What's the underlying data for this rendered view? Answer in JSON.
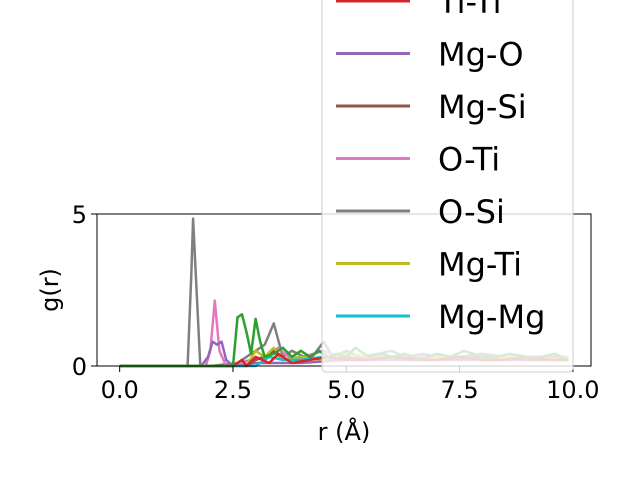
{
  "chart_data": {
    "type": "line",
    "title": "",
    "xlabel": "r (Å)",
    "ylabel": "g(r)",
    "xlim": [
      -0.5,
      10.4
    ],
    "ylim": [
      0,
      5
    ],
    "xticks": [
      0.0,
      2.5,
      5.0,
      7.5,
      10.0
    ],
    "xtick_labels": [
      "0.0",
      "2.5",
      "5.0",
      "7.5",
      "10.0"
    ],
    "yticks": [
      0,
      5
    ],
    "ytick_labels": [
      "0",
      "5"
    ],
    "grid": false,
    "legend_position": "upper-right (extends above plot area)",
    "series": [
      {
        "name": "Ti-Ti",
        "color": "#d62728",
        "x": [
          0,
          2.5,
          2.7,
          2.8,
          3.0,
          3.3,
          3.5,
          3.8,
          4.2,
          4.6,
          5.0,
          5.5,
          6.0,
          6.5,
          7.0,
          7.5,
          8.0,
          8.5,
          9.0,
          9.5,
          9.9
        ],
        "y": [
          0,
          0,
          0.2,
          0.0,
          0.3,
          0.1,
          0.4,
          0.1,
          0.2,
          0.3,
          0.2,
          0.2,
          0.3,
          0.2,
          0.2,
          0.3,
          0.2,
          0.2,
          0.3,
          0.2,
          0.2
        ]
      },
      {
        "name": "Mg-O",
        "color": "#9467bd",
        "x": [
          0,
          1.8,
          1.95,
          2.05,
          2.15,
          2.25,
          2.35,
          2.5,
          3.0,
          4.0,
          5.0,
          6.0,
          7.0,
          8.0,
          9.0,
          9.9
        ],
        "y": [
          0,
          0,
          0.3,
          0.8,
          0.7,
          0.8,
          0.2,
          0.0,
          0.1,
          0.1,
          0.2,
          0.2,
          0.2,
          0.2,
          0.2,
          0.2
        ]
      },
      {
        "name": "Mg-Si",
        "color": "#8c564b",
        "x": [
          0,
          2.8,
          3.0,
          3.2,
          3.4,
          3.6,
          4.0,
          4.5,
          5.0,
          5.5,
          6.0,
          7.0,
          8.0,
          9.0,
          9.9
        ],
        "y": [
          0,
          0,
          0.2,
          0.3,
          0.5,
          0.2,
          0.3,
          0.2,
          0.3,
          0.2,
          0.3,
          0.2,
          0.3,
          0.2,
          0.2
        ]
      },
      {
        "name": "O-Ti",
        "color": "#e377c2",
        "x": [
          0,
          1.9,
          2.0,
          2.1,
          2.2,
          2.35,
          2.6,
          3.2,
          3.5,
          3.8,
          4.5,
          5.0,
          5.5,
          6.0,
          7.0,
          8.0,
          9.0,
          9.9
        ],
        "y": [
          0,
          0,
          0.5,
          2.15,
          0.5,
          0.0,
          0.1,
          0.3,
          0.6,
          0.2,
          0.5,
          0.2,
          0.3,
          0.3,
          0.3,
          0.2,
          0.3,
          0.2
        ]
      },
      {
        "name": "O-Si",
        "color": "#7f7f7f",
        "x": [
          0,
          1.5,
          1.58,
          1.62,
          1.68,
          1.78,
          2.0,
          2.6,
          2.9,
          3.2,
          3.4,
          3.6,
          3.8,
          4.2,
          4.5,
          4.7,
          5.0,
          5.3,
          5.7,
          6.0,
          6.3,
          6.7,
          7.0,
          7.5,
          8.0,
          8.5,
          9.0,
          9.5,
          9.9
        ],
        "y": [
          0,
          0,
          3.0,
          4.85,
          3.0,
          0.0,
          0.0,
          0.1,
          0.4,
          0.7,
          1.4,
          0.3,
          0.5,
          0.2,
          0.8,
          0.3,
          0.5,
          0.3,
          0.4,
          0.5,
          0.3,
          0.4,
          0.3,
          0.3,
          0.4,
          0.3,
          0.3,
          0.3,
          0.3
        ]
      },
      {
        "name": "Mg-Ti",
        "color": "#bcbd22",
        "x": [
          0,
          2.8,
          3.0,
          3.2,
          3.4,
          3.6,
          4.0,
          4.5,
          5.0,
          5.5,
          6.0,
          6.5,
          7.0,
          7.5,
          8.0,
          8.5,
          9.0,
          9.5,
          9.9
        ],
        "y": [
          0,
          0,
          0.5,
          0.3,
          0.6,
          0.2,
          0.3,
          0.2,
          0.4,
          0.3,
          0.3,
          0.2,
          0.3,
          0.3,
          0.2,
          0.3,
          0.3,
          0.2,
          0.3
        ]
      },
      {
        "name": "Mg-Mg",
        "color": "#17becf",
        "x": [
          0,
          3.0,
          3.3,
          3.6,
          4.0,
          4.5,
          5.0,
          5.5,
          6.0,
          6.5,
          7.0,
          7.5,
          8.0,
          8.5,
          9.0,
          9.5,
          9.9
        ],
        "y": [
          0,
          0,
          0.3,
          0.2,
          0.2,
          0.3,
          0.2,
          0.2,
          0.3,
          0.2,
          0.2,
          0.3,
          0.2,
          0.2,
          0.3,
          0.2,
          0.2
        ]
      },
      {
        "name": "",
        "color": "#2ca02c",
        "x": [
          0,
          2.5,
          2.6,
          2.7,
          2.8,
          2.9,
          3.0,
          3.1,
          3.2,
          3.4,
          3.6,
          3.8,
          4.0,
          4.2,
          4.4,
          4.6,
          4.8,
          5.0,
          5.2,
          5.5,
          5.8,
          6.0,
          6.3,
          6.6,
          7.0,
          7.3,
          7.6,
          8.0,
          8.3,
          8.6,
          9.0,
          9.3,
          9.6,
          9.9
        ],
        "y": [
          0,
          0,
          1.6,
          1.7,
          1.1,
          0.4,
          1.55,
          0.8,
          0.3,
          0.4,
          0.6,
          0.3,
          0.5,
          0.3,
          0.5,
          0.3,
          0.4,
          0.3,
          0.6,
          0.3,
          0.4,
          0.3,
          0.4,
          0.2,
          0.4,
          0.3,
          0.5,
          0.3,
          0.3,
          0.4,
          0.3,
          0.3,
          0.4,
          0.2
        ]
      }
    ]
  },
  "legend": {
    "items": [
      {
        "label": "Ti-Ti",
        "color": "#d62728"
      },
      {
        "label": "Mg-O",
        "color": "#9467bd"
      },
      {
        "label": "Mg-Si",
        "color": "#8c564b"
      },
      {
        "label": "O-Ti",
        "color": "#e377c2"
      },
      {
        "label": "O-Si",
        "color": "#7f7f7f"
      },
      {
        "label": "Mg-Ti",
        "color": "#bcbd22"
      },
      {
        "label": "Mg-Mg",
        "color": "#17becf"
      }
    ]
  }
}
